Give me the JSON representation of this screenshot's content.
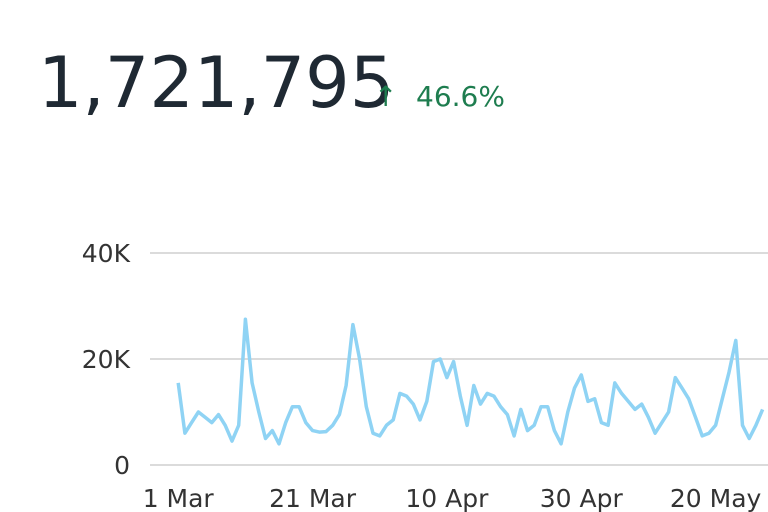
{
  "summary": {
    "value": "1,721,795",
    "arrow": "↑",
    "change": "46.6%"
  },
  "chart_data": {
    "type": "line",
    "x": [
      0,
      1,
      2,
      3,
      4,
      5,
      6,
      7,
      8,
      9,
      10,
      11,
      12,
      13,
      14,
      15,
      16,
      17,
      18,
      19,
      20,
      21,
      22,
      23,
      24,
      25,
      26,
      27,
      28,
      29,
      30,
      31,
      32,
      33,
      34,
      35,
      36,
      37,
      38,
      39,
      40,
      41,
      42,
      43,
      44,
      45,
      46,
      47,
      48,
      49,
      50,
      51,
      52,
      53,
      54,
      55,
      56,
      57,
      58,
      59,
      60,
      61,
      62,
      63,
      64,
      65,
      66,
      67,
      68,
      69,
      70,
      71,
      72,
      73,
      74,
      75,
      76,
      77,
      78,
      79,
      80,
      81,
      82,
      83,
      84,
      85,
      86,
      87
    ],
    "series": [
      {
        "color": "#8fd3f4",
        "values": [
          15500,
          6000,
          8000,
          10000,
          9000,
          8000,
          9500,
          7500,
          4500,
          7500,
          27500,
          15500,
          10000,
          5000,
          6500,
          4000,
          8000,
          11000,
          11000,
          8000,
          6500,
          6200,
          6300,
          7500,
          9500,
          15000,
          26500,
          20000,
          11000,
          6000,
          5500,
          7500,
          8500,
          13500,
          13000,
          11500,
          8500,
          12000,
          19500,
          20000,
          16500,
          19500,
          13000,
          7500,
          15000,
          11500,
          13500,
          13000,
          11000,
          9500,
          5500,
          10500,
          6500,
          7500,
          11000,
          11000,
          6500,
          4000,
          10000,
          14500,
          17000,
          12000,
          12500,
          8000,
          7500,
          15500,
          13500,
          12000,
          10500,
          11500,
          9000,
          6000,
          8000,
          10000,
          16500,
          14500,
          12500,
          9000,
          5500,
          6000,
          7500,
          12500,
          17500,
          23500,
          7500,
          5000,
          7500,
          10500
        ]
      }
    ],
    "xlim": [
      -4.2,
      87.8
    ],
    "xticks": [
      {
        "value": 0,
        "label": "1 Mar"
      },
      {
        "value": 20,
        "label": "21 Mar"
      },
      {
        "value": 40,
        "label": "10 Apr"
      },
      {
        "value": 60,
        "label": "30 Apr"
      },
      {
        "value": 80,
        "label": "20 May"
      }
    ],
    "ylim": [
      0,
      40000
    ],
    "yticks": [
      0,
      {
        "value": 20000,
        "label": "20K"
      },
      {
        "value": 40000,
        "label": "40K"
      }
    ],
    "grid": true
  }
}
